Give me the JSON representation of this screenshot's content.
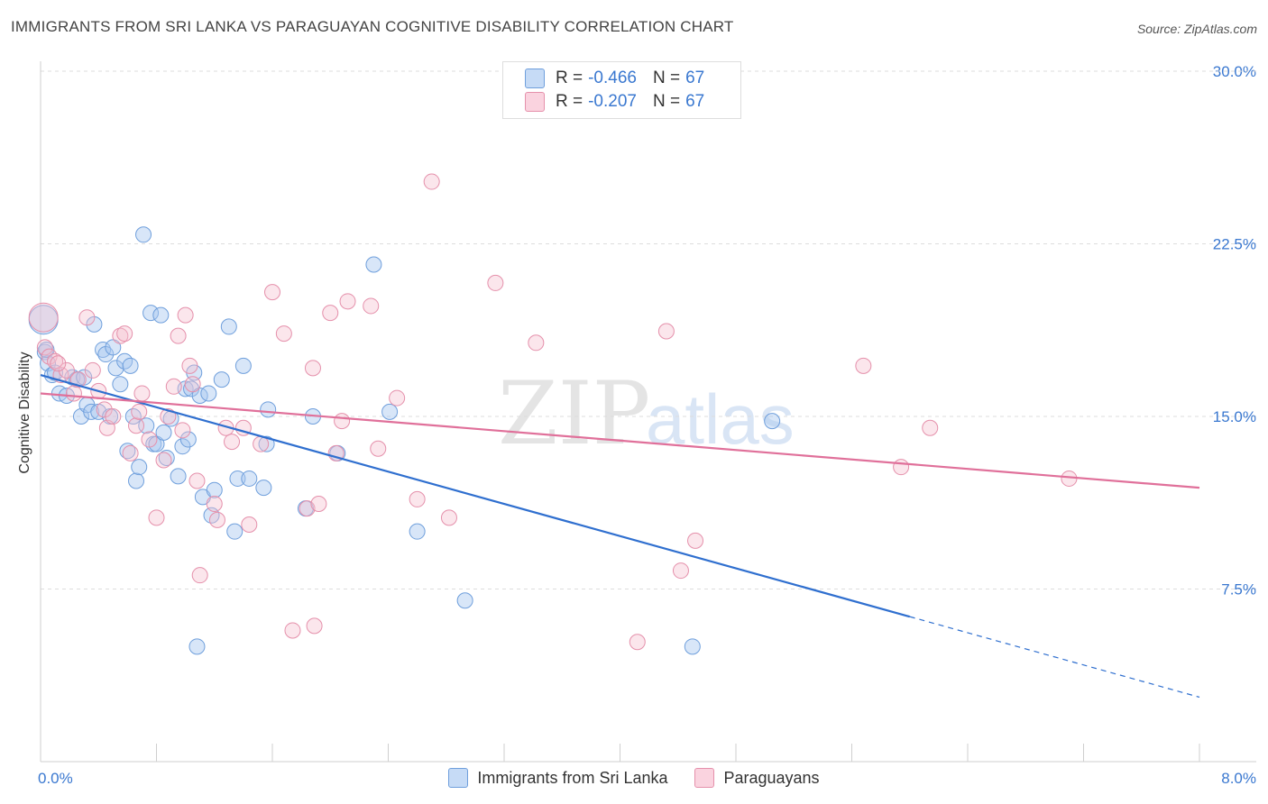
{
  "title": "IMMIGRANTS FROM SRI LANKA VS PARAGUAYAN COGNITIVE DISABILITY CORRELATION CHART",
  "source": "Source: ZipAtlas.com",
  "watermark": {
    "zip": "ZIP",
    "atlas": "atlas"
  },
  "colors": {
    "blue": "#a9c8f0",
    "blue_edge": "#6f9fdc",
    "blue_line": "#2f6fcf",
    "pink": "#f6c0d0",
    "pink_edge": "#e590ab",
    "pink_line": "#e0709a",
    "tick_label": "#3a78d0",
    "grid": "#dddddd"
  },
  "legend_stats": [
    {
      "r_label": "R =",
      "r_value": "-0.466",
      "n_label": "N =",
      "n_value": "67",
      "color": "#a9c8f0"
    },
    {
      "r_label": "R =",
      "r_value": "-0.207",
      "n_label": "N =",
      "n_value": "67",
      "color": "#f6c0d0"
    }
  ],
  "chart_data": {
    "type": "scatter",
    "title": "IMMIGRANTS FROM SRI LANKA VS PARAGUAYAN COGNITIVE DISABILITY CORRELATION CHART",
    "xlabel": "",
    "ylabel": "Cognitive Disability",
    "xlim": [
      0,
      8
    ],
    "ylim": [
      0,
      30
    ],
    "x_tick_labels": [
      "0.0%",
      "8.0%"
    ],
    "y_ticks": [
      7.5,
      15.0,
      22.5,
      30.0
    ],
    "y_tick_labels": [
      "7.5%",
      "15.0%",
      "22.5%",
      "30.0%"
    ],
    "grid": true,
    "legend_position": "bottom",
    "series": [
      {
        "name": "Immigrants from Sri Lanka",
        "color": "#a9c8f0",
        "points": [
          [
            0.02,
            19.2
          ],
          [
            0.03,
            17.8
          ],
          [
            0.05,
            17.3
          ],
          [
            0.08,
            16.8
          ],
          [
            0.13,
            16.0
          ],
          [
            0.18,
            15.9
          ],
          [
            0.22,
            16.7
          ],
          [
            0.25,
            16.6
          ],
          [
            0.28,
            15.0
          ],
          [
            0.3,
            16.7
          ],
          [
            0.32,
            15.5
          ],
          [
            0.35,
            15.2
          ],
          [
            0.37,
            19.0
          ],
          [
            0.4,
            15.2
          ],
          [
            0.43,
            17.9
          ],
          [
            0.45,
            17.7
          ],
          [
            0.48,
            15.0
          ],
          [
            0.5,
            18.0
          ],
          [
            0.52,
            17.1
          ],
          [
            0.55,
            16.4
          ],
          [
            0.58,
            17.4
          ],
          [
            0.62,
            17.2
          ],
          [
            0.64,
            15.0
          ],
          [
            0.66,
            12.2
          ],
          [
            0.68,
            12.8
          ],
          [
            0.71,
            22.9
          ],
          [
            0.73,
            14.6
          ],
          [
            0.76,
            19.5
          ],
          [
            0.78,
            13.8
          ],
          [
            0.8,
            13.8
          ],
          [
            0.83,
            19.4
          ],
          [
            0.85,
            14.3
          ],
          [
            0.87,
            13.2
          ],
          [
            0.9,
            14.9
          ],
          [
            0.95,
            12.4
          ],
          [
            0.98,
            13.7
          ],
          [
            1.0,
            16.2
          ],
          [
            1.04,
            16.2
          ],
          [
            1.06,
            16.9
          ],
          [
            1.08,
            5.0
          ],
          [
            1.1,
            15.9
          ],
          [
            1.12,
            11.5
          ],
          [
            1.16,
            16.0
          ],
          [
            1.18,
            10.7
          ],
          [
            1.2,
            11.8
          ],
          [
            1.25,
            16.6
          ],
          [
            1.3,
            18.9
          ],
          [
            1.34,
            10.0
          ],
          [
            1.36,
            12.3
          ],
          [
            1.4,
            17.2
          ],
          [
            1.44,
            12.3
          ],
          [
            1.54,
            11.9
          ],
          [
            1.56,
            13.8
          ],
          [
            1.57,
            15.3
          ],
          [
            1.83,
            11.0
          ],
          [
            1.88,
            15.0
          ],
          [
            2.05,
            13.4
          ],
          [
            2.3,
            21.6
          ],
          [
            2.41,
            15.2
          ],
          [
            2.6,
            10.0
          ],
          [
            2.93,
            7.0
          ],
          [
            4.5,
            5.0
          ],
          [
            5.05,
            14.8
          ],
          [
            0.04,
            17.9
          ],
          [
            0.1,
            16.9
          ],
          [
            0.6,
            13.5
          ],
          [
            1.02,
            14.0
          ]
        ]
      },
      {
        "name": "Paraguayans",
        "color": "#f6c0d0",
        "points": [
          [
            0.02,
            19.3
          ],
          [
            0.03,
            18.0
          ],
          [
            0.06,
            17.6
          ],
          [
            0.1,
            17.4
          ],
          [
            0.14,
            16.8
          ],
          [
            0.18,
            17.0
          ],
          [
            0.23,
            16.0
          ],
          [
            0.26,
            16.6
          ],
          [
            0.32,
            19.3
          ],
          [
            0.36,
            17.0
          ],
          [
            0.4,
            16.1
          ],
          [
            0.44,
            15.3
          ],
          [
            0.46,
            14.5
          ],
          [
            0.5,
            15.0
          ],
          [
            0.55,
            18.5
          ],
          [
            0.58,
            18.6
          ],
          [
            0.62,
            13.4
          ],
          [
            0.66,
            14.6
          ],
          [
            0.68,
            15.2
          ],
          [
            0.7,
            16.0
          ],
          [
            0.75,
            14.0
          ],
          [
            0.8,
            10.6
          ],
          [
            0.85,
            13.1
          ],
          [
            0.88,
            15.0
          ],
          [
            0.92,
            16.3
          ],
          [
            0.95,
            18.5
          ],
          [
            0.98,
            14.4
          ],
          [
            1.0,
            19.4
          ],
          [
            1.03,
            17.2
          ],
          [
            1.05,
            16.4
          ],
          [
            1.08,
            12.2
          ],
          [
            1.1,
            8.1
          ],
          [
            1.2,
            11.2
          ],
          [
            1.22,
            10.5
          ],
          [
            1.28,
            14.5
          ],
          [
            1.32,
            13.9
          ],
          [
            1.4,
            14.5
          ],
          [
            1.44,
            10.3
          ],
          [
            1.52,
            13.8
          ],
          [
            1.6,
            20.4
          ],
          [
            1.68,
            18.6
          ],
          [
            1.74,
            5.7
          ],
          [
            1.84,
            11.0
          ],
          [
            1.88,
            17.1
          ],
          [
            1.89,
            5.9
          ],
          [
            1.92,
            11.2
          ],
          [
            2.0,
            19.5
          ],
          [
            2.04,
            13.4
          ],
          [
            2.08,
            14.8
          ],
          [
            2.12,
            20.0
          ],
          [
            2.28,
            19.8
          ],
          [
            2.33,
            13.6
          ],
          [
            2.46,
            15.8
          ],
          [
            2.6,
            11.4
          ],
          [
            2.7,
            25.2
          ],
          [
            2.82,
            10.6
          ],
          [
            3.14,
            20.8
          ],
          [
            3.42,
            18.2
          ],
          [
            4.12,
            5.2
          ],
          [
            4.32,
            18.7
          ],
          [
            4.42,
            8.3
          ],
          [
            4.52,
            9.6
          ],
          [
            5.68,
            17.2
          ],
          [
            5.94,
            12.8
          ],
          [
            6.14,
            14.5
          ],
          [
            7.1,
            12.3
          ],
          [
            0.12,
            17.3
          ]
        ]
      }
    ],
    "trendlines": [
      {
        "series": "Immigrants from Sri Lanka",
        "x0": 0.0,
        "y0": 16.8,
        "x1": 8.0,
        "y1": 2.8,
        "solid_until_x": 6.0
      },
      {
        "series": "Paraguayans",
        "x0": 0.0,
        "y0": 16.0,
        "x1": 8.0,
        "y1": 11.9,
        "solid_until_x": 8.0
      }
    ]
  }
}
